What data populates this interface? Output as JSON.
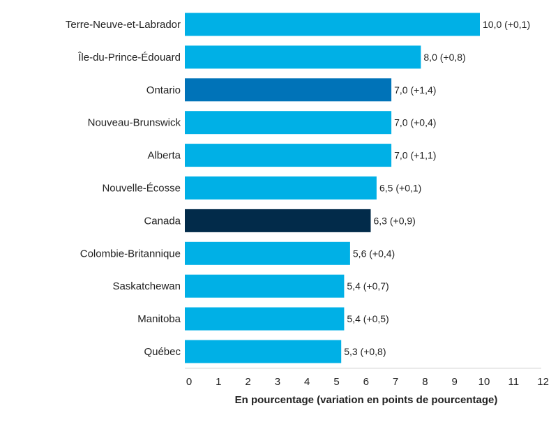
{
  "chart_data": {
    "type": "bar",
    "orientation": "horizontal",
    "categories": [
      "Terre-Neuve-et-Labrador",
      "Île-du-Prince-Édouard",
      "Ontario",
      "Nouveau-Brunswick",
      "Alberta",
      "Nouvelle-Écosse",
      "Canada",
      "Colombie-Britannique",
      "Saskatchewan",
      "Manitoba",
      "Québec"
    ],
    "values": [
      10.0,
      8.0,
      7.0,
      7.0,
      7.0,
      6.5,
      6.3,
      5.6,
      5.4,
      5.4,
      5.3
    ],
    "changes": [
      0.1,
      0.8,
      1.4,
      0.4,
      1.1,
      0.1,
      0.9,
      0.4,
      0.7,
      0.5,
      0.8
    ],
    "data_labels": [
      "10,0 (+0,1)",
      "8,0 (+0,8)",
      "7,0 (+1,4)",
      "7,0 (+0,4)",
      "7,0 (+1,1)",
      "6,5 (+0,1)",
      "6,3 (+0,9)",
      "5,6 (+0,4)",
      "5,4 (+0,7)",
      "5,4 (+0,5)",
      "5,3 (+0,8)"
    ],
    "bar_colors": [
      "#00b0e6",
      "#00b0e6",
      "#0073b8",
      "#00b0e6",
      "#00b0e6",
      "#00b0e6",
      "#022b4a",
      "#00b0e6",
      "#00b0e6",
      "#00b0e6",
      "#00b0e6"
    ],
    "xlim": [
      0,
      12
    ],
    "xticks": [
      0,
      1,
      2,
      3,
      4,
      5,
      6,
      7,
      8,
      9,
      10,
      11,
      12
    ],
    "xtick_labels": [
      "0",
      "1",
      "2",
      "3",
      "4",
      "5",
      "6",
      "7",
      "8",
      "9",
      "10",
      "11",
      "12"
    ],
    "xlabel": "En pourcentage (variation en points de pourcentage)",
    "ylabel": "",
    "title": "",
    "grid": false,
    "colors": {
      "primary": "#00b0e6",
      "highlight": "#0073b8",
      "total": "#022b4a",
      "text": "#222222",
      "axis": "#d4d4d4"
    }
  }
}
